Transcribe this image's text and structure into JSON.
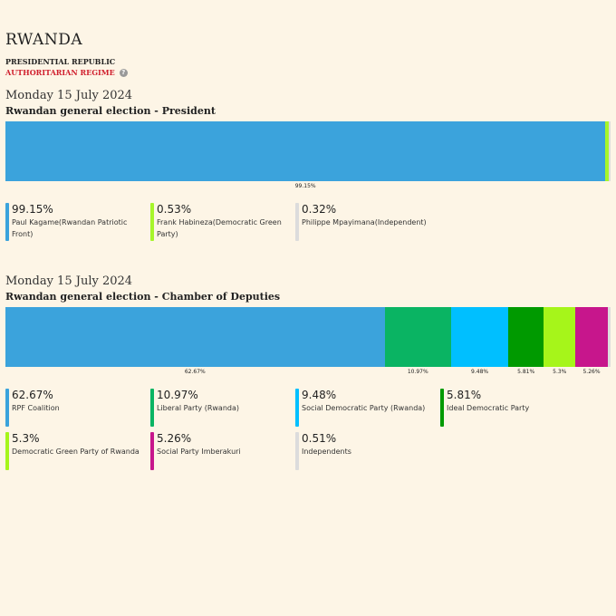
{
  "country": "RWANDA",
  "system": "PRESIDENTIAL REPUBLIC",
  "regime": "AUTHORITARIAN REGIME",
  "help_glyph": "?",
  "elections": [
    {
      "date": "Monday 15 July 2024",
      "title": "Rwandan general election - President",
      "results": [
        {
          "name": "Paul Kagame(Rwandan Patriotic Front)",
          "pct": "99.15%",
          "value": 99.15,
          "color": "#3ba3dc",
          "bar_label": "99.15%"
        },
        {
          "name": "Frank Habineza(Democratic Green Party)",
          "pct": "0.53%",
          "value": 0.53,
          "color": "#a6f52a",
          "bar_label": ""
        },
        {
          "name": "Philippe Mpayimana(Independent)",
          "pct": "0.32%",
          "value": 0.32,
          "color": "#dcdcdc",
          "bar_label": ""
        }
      ]
    },
    {
      "date": "Monday 15 July 2024",
      "title": "Rwandan general election - Chamber of Deputies",
      "results": [
        {
          "name": "RPF Coalition",
          "pct": "62.67%",
          "value": 62.67,
          "color": "#3ba3dc",
          "bar_label": "62.67%"
        },
        {
          "name": "Liberal Party (Rwanda)",
          "pct": "10.97%",
          "value": 10.97,
          "color": "#0ab463",
          "bar_label": "10.97%"
        },
        {
          "name": "Social Democratic Party (Rwanda)",
          "pct": "9.48%",
          "value": 9.48,
          "color": "#00bfff",
          "bar_label": "9.48%"
        },
        {
          "name": "Ideal Democratic Party",
          "pct": "5.81%",
          "value": 5.81,
          "color": "#009a00",
          "bar_label": "5.81%"
        },
        {
          "name": "Democratic Green Party of Rwanda",
          "pct": "5.3%",
          "value": 5.3,
          "color": "#a6f51a",
          "bar_label": "5.3%"
        },
        {
          "name": "Social Party Imberakuri",
          "pct": "5.26%",
          "value": 5.26,
          "color": "#c7168c",
          "bar_label": "5.26%"
        },
        {
          "name": "Independents",
          "pct": "0.51%",
          "value": 0.51,
          "color": "#dcdcdc",
          "bar_label": ""
        }
      ]
    }
  ],
  "chart_data": [
    {
      "type": "bar",
      "orientation": "stacked-horizontal",
      "title": "Rwandan general election - President",
      "categories": [
        "Paul Kagame(Rwandan Patriotic Front)",
        "Frank Habineza(Democratic Green Party)",
        "Philippe Mpayimana(Independent)"
      ],
      "values": [
        99.15,
        0.53,
        0.32
      ],
      "xlim": [
        0,
        100
      ]
    },
    {
      "type": "bar",
      "orientation": "stacked-horizontal",
      "title": "Rwandan general election - Chamber of Deputies",
      "categories": [
        "RPF Coalition",
        "Liberal Party (Rwanda)",
        "Social Democratic Party (Rwanda)",
        "Ideal Democratic Party",
        "Democratic Green Party of Rwanda",
        "Social Party Imberakuri",
        "Independents"
      ],
      "values": [
        62.67,
        10.97,
        9.48,
        5.81,
        5.3,
        5.26,
        0.51
      ],
      "xlim": [
        0,
        100
      ]
    }
  ]
}
